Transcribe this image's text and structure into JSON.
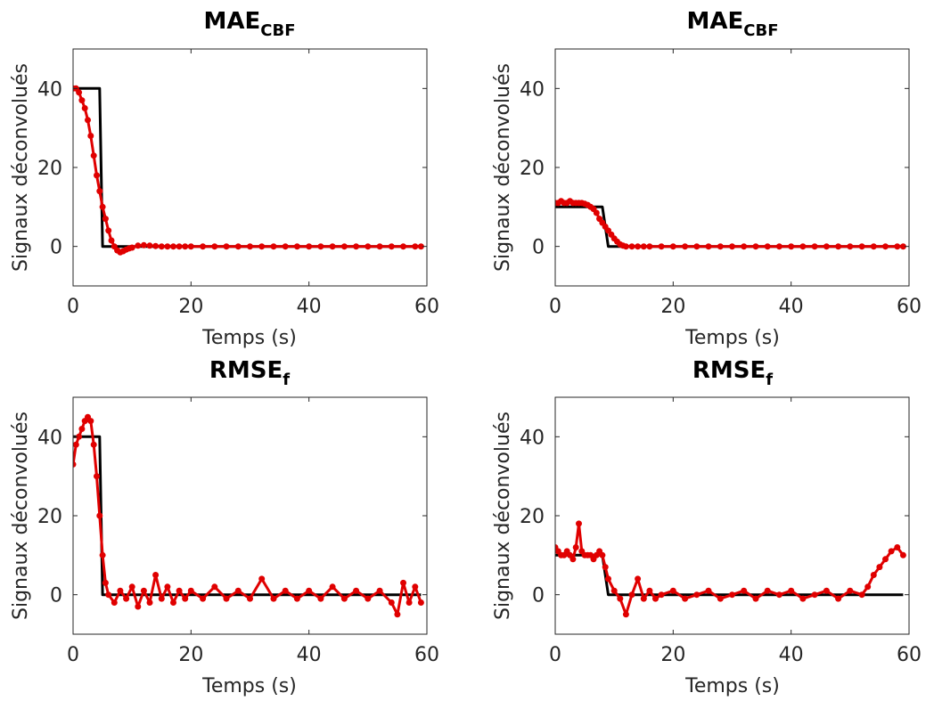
{
  "colors": {
    "truth": "#000000",
    "estimate": "#e00000",
    "axis": "#262626"
  },
  "chart_data": [
    {
      "type": "line",
      "title_main": "MAE",
      "title_sub": "CBF",
      "xlabel": "Temps (s)",
      "ylabel": "Signaux déconvolués",
      "xlim": [
        0,
        60
      ],
      "ylim": [
        -10,
        50
      ],
      "xticks": [
        "0",
        "20",
        "40",
        "60"
      ],
      "yticks": [
        "0",
        "20",
        "40"
      ],
      "grid": false,
      "series": [
        {
          "role": "truth",
          "x": [
            0,
            4.5,
            4.5,
            5,
            5,
            59
          ],
          "y": [
            40,
            40,
            40,
            0,
            0,
            0
          ]
        },
        {
          "role": "estimate",
          "x": [
            0,
            0.5,
            1,
            1.5,
            2,
            2.5,
            3,
            3.5,
            4,
            4.5,
            5,
            5.5,
            6,
            6.5,
            7,
            7.5,
            8,
            8.5,
            9,
            9.5,
            10,
            11,
            12,
            13,
            14,
            15,
            16,
            17,
            18,
            19,
            20,
            22,
            24,
            26,
            28,
            30,
            32,
            34,
            36,
            38,
            40,
            42,
            44,
            46,
            48,
            50,
            52,
            54,
            56,
            58,
            59
          ],
          "y": [
            40,
            40,
            39,
            37,
            35,
            32,
            28,
            23,
            18,
            14,
            10,
            7,
            4,
            1.5,
            0,
            -1,
            -1.5,
            -1.2,
            -0.8,
            -0.5,
            -0.3,
            0.2,
            0.3,
            0.2,
            0.1,
            0,
            0,
            0,
            0,
            0,
            0,
            0,
            0,
            0,
            0,
            0,
            0,
            0,
            0,
            0,
            0,
            0,
            0,
            0,
            0,
            0,
            0,
            0,
            0,
            0,
            0
          ]
        }
      ]
    },
    {
      "type": "line",
      "title_main": "MAE",
      "title_sub": "CBF",
      "xlabel": "Temps (s)",
      "ylabel": "Signaux déconvolués",
      "xlim": [
        0,
        60
      ],
      "ylim": [
        -10,
        50
      ],
      "xticks": [
        "0",
        "20",
        "40",
        "60"
      ],
      "yticks": [
        "0",
        "20",
        "40"
      ],
      "grid": false,
      "series": [
        {
          "role": "truth",
          "x": [
            0,
            8,
            8,
            9,
            9,
            59
          ],
          "y": [
            10,
            10,
            10,
            0,
            0,
            0
          ]
        },
        {
          "role": "estimate",
          "x": [
            0,
            0.5,
            1,
            1.5,
            2,
            2.5,
            3,
            3.5,
            4,
            4.5,
            5,
            5.5,
            6,
            6.5,
            7,
            7.5,
            8,
            8.5,
            9,
            9.5,
            10,
            10.5,
            11,
            11.5,
            12,
            13,
            14,
            15,
            16,
            18,
            20,
            22,
            24,
            26,
            28,
            30,
            32,
            34,
            36,
            38,
            40,
            42,
            44,
            46,
            48,
            50,
            52,
            54,
            56,
            58,
            59
          ],
          "y": [
            11,
            11,
            11.5,
            11,
            11,
            11.5,
            11,
            11,
            11,
            11,
            10.8,
            10.5,
            10,
            9.5,
            8.5,
            7,
            6,
            5,
            4,
            3,
            2,
            1.2,
            0.5,
            0.2,
            0,
            0,
            0,
            0,
            0,
            0,
            0,
            0,
            0,
            0,
            0,
            0,
            0,
            0,
            0,
            0,
            0,
            0,
            0,
            0,
            0,
            0,
            0,
            0,
            0,
            0,
            0
          ]
        }
      ]
    },
    {
      "type": "line",
      "title_main": "RMSE",
      "title_sub": "f",
      "xlabel": "Temps (s)",
      "ylabel": "Signaux déconvolués",
      "xlim": [
        0,
        60
      ],
      "ylim": [
        -10,
        50
      ],
      "xticks": [
        "0",
        "20",
        "40",
        "60"
      ],
      "yticks": [
        "0",
        "20",
        "40"
      ],
      "grid": false,
      "series": [
        {
          "role": "truth",
          "x": [
            0,
            4.5,
            4.5,
            5,
            5,
            59
          ],
          "y": [
            40,
            40,
            40,
            0,
            0,
            0
          ]
        },
        {
          "role": "estimate",
          "x": [
            0,
            0.5,
            1,
            1.5,
            2,
            2.5,
            3,
            3.5,
            4,
            4.5,
            5,
            5.5,
            6,
            7,
            8,
            9,
            10,
            11,
            12,
            13,
            14,
            15,
            16,
            17,
            18,
            19,
            20,
            22,
            24,
            26,
            28,
            30,
            32,
            34,
            36,
            38,
            40,
            42,
            44,
            46,
            48,
            50,
            52,
            54,
            55,
            56,
            57,
            58,
            59
          ],
          "y": [
            33,
            38,
            40,
            42,
            44,
            45,
            44,
            38,
            30,
            20,
            10,
            3,
            0,
            -2,
            1,
            -1,
            2,
            -3,
            1,
            -2,
            5,
            -1,
            2,
            -2,
            1,
            -1,
            1,
            -1,
            2,
            -1,
            1,
            -1,
            4,
            -1,
            1,
            -1,
            1,
            -1,
            2,
            -1,
            1,
            -1,
            1,
            -2,
            -5,
            3,
            -2,
            2,
            -2
          ]
        }
      ]
    },
    {
      "type": "line",
      "title_main": "RMSE",
      "title_sub": "f",
      "xlabel": "Temps (s)",
      "ylabel": "Signaux déconvolués",
      "xlim": [
        0,
        60
      ],
      "ylim": [
        -10,
        50
      ],
      "xticks": [
        "0",
        "20",
        "40",
        "60"
      ],
      "yticks": [
        "0",
        "20",
        "40"
      ],
      "grid": false,
      "series": [
        {
          "role": "truth",
          "x": [
            0,
            8,
            8,
            9,
            9,
            59
          ],
          "y": [
            10,
            10,
            10,
            0,
            0,
            0
          ]
        },
        {
          "role": "estimate",
          "x": [
            0,
            0.5,
            1,
            1.5,
            2,
            2.5,
            3,
            3.5,
            4,
            4.5,
            5,
            5.5,
            6,
            6.5,
            7,
            7.5,
            8,
            8.5,
            9,
            10,
            11,
            12,
            13,
            14,
            15,
            16,
            17,
            18,
            20,
            22,
            24,
            26,
            28,
            30,
            32,
            34,
            36,
            38,
            40,
            42,
            44,
            46,
            48,
            50,
            52,
            53,
            54,
            55,
            56,
            57,
            58,
            59
          ],
          "y": [
            12,
            11,
            10,
            10,
            11,
            10,
            9,
            12,
            18,
            11,
            10,
            10,
            10,
            9,
            10,
            11,
            10,
            7,
            4,
            1,
            -1,
            -5,
            0,
            4,
            -1,
            1,
            -1,
            0,
            1,
            -1,
            0,
            1,
            -1,
            0,
            1,
            -1,
            1,
            0,
            1,
            -1,
            0,
            1,
            -1,
            1,
            0,
            2,
            5,
            7,
            9,
            11,
            12,
            10
          ]
        }
      ]
    }
  ]
}
